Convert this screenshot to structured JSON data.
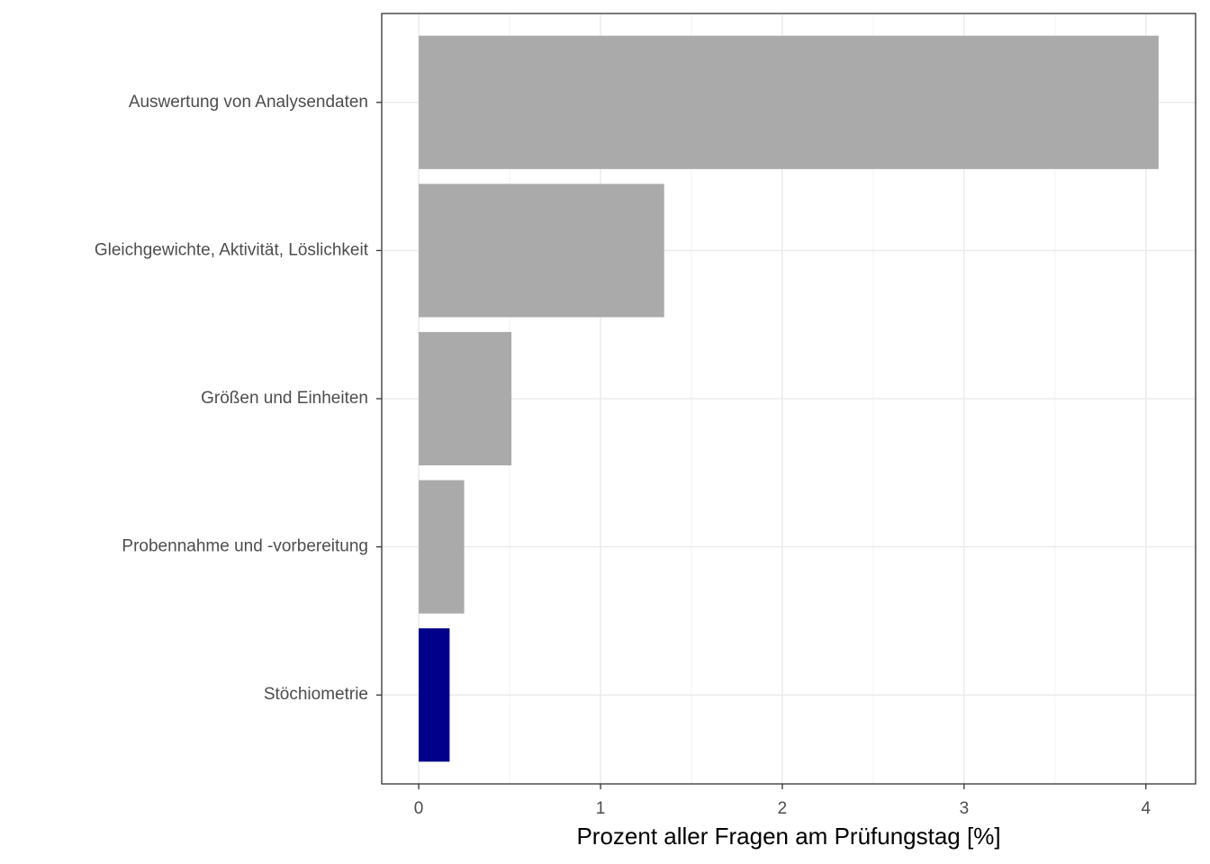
{
  "chart_data": {
    "type": "bar",
    "orientation": "horizontal",
    "x_label": "Prozent aller Fragen am Prüfungstag [%]",
    "categories": [
      "Auswertung von Analysendaten",
      "Gleichgewichte, Aktivität, Löslichkeit",
      "Größen und Einheiten",
      "Probennahme und -vorbereitung",
      "Stöchiometrie"
    ],
    "values": [
      4.07,
      1.35,
      0.51,
      0.25,
      0.17
    ],
    "colors": [
      "#aaaaaa",
      "#aaaaaa",
      "#aaaaaa",
      "#aaaaaa",
      "#00008b"
    ],
    "xlim": [
      -0.2035,
      4.2735
    ],
    "xticks": [
      0,
      1,
      2,
      3,
      4
    ],
    "xminor": [
      0.5,
      1.5,
      2.5,
      3.5
    ],
    "grid": true
  }
}
